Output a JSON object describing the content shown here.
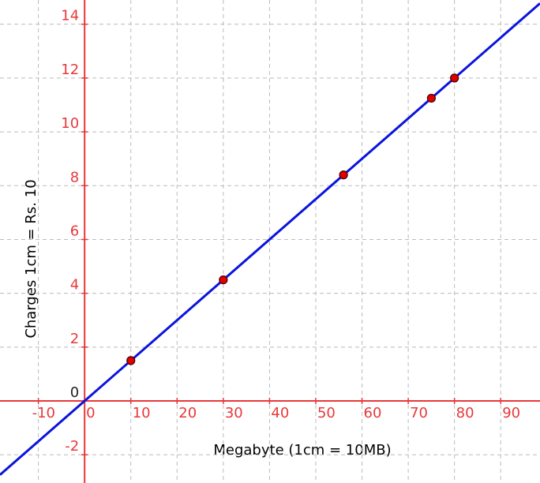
{
  "chart_data": {
    "type": "scatter",
    "x_label": "Megabyte (1cm = 10MB)",
    "y_label": "Charges 1cm  =  Rs.  10",
    "x": [
      10,
      30,
      56,
      75,
      80
    ],
    "values": [
      1.5,
      4.5,
      8.4,
      11.25,
      12
    ],
    "color": "#e00000",
    "line": {
      "slope": 0.15,
      "intercept": 0,
      "color": "#0a14dc"
    },
    "axis_color": "#e8383a",
    "grid": true,
    "xlim": [
      -18.3,
      98.5
    ],
    "ylim": [
      -3.05,
      14.9
    ],
    "xticks": [
      -10,
      0,
      10,
      20,
      30,
      40,
      50,
      60,
      70,
      80,
      90
    ],
    "yticks": [
      -2,
      0,
      2,
      4,
      6,
      8,
      10,
      12,
      14
    ]
  }
}
